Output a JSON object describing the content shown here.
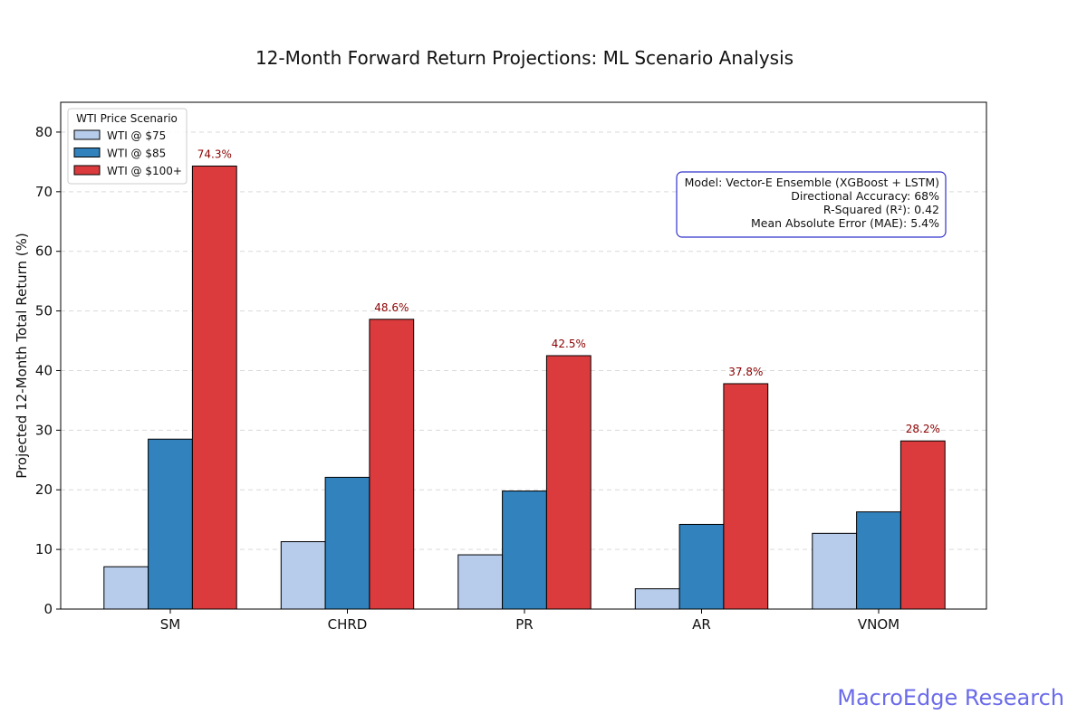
{
  "chart_data": {
    "type": "bar",
    "title": "12-Month Forward Return Projections: ML Scenario Analysis",
    "xlabel": "",
    "ylabel": "Projected 12-Month Total Return (%)",
    "ylim": [
      0,
      85
    ],
    "yticks": [
      "0",
      "10",
      "20",
      "30",
      "40",
      "50",
      "60",
      "70",
      "80"
    ],
    "grid": true,
    "categories": [
      "SM",
      "CHRD",
      "PR",
      "AR",
      "VNOM"
    ],
    "series": [
      {
        "name": "WTI @ $75",
        "color": "#b7ccea",
        "values": [
          7.1,
          11.3,
          9.1,
          3.4,
          12.7
        ]
      },
      {
        "name": "WTI @ $85",
        "color": "#3182bd",
        "values": [
          28.5,
          22.1,
          19.8,
          14.2,
          16.3
        ]
      },
      {
        "name": "WTI @ $100+",
        "color": "#dc3b3e",
        "values": [
          74.3,
          48.6,
          42.5,
          37.8,
          28.2
        ]
      }
    ],
    "data_labels": [
      "74.3%",
      "48.6%",
      "42.5%",
      "37.8%",
      "28.2%"
    ],
    "legend": {
      "title": "WTI Price Scenario",
      "placement": "top-left"
    },
    "annotation": {
      "border_color": "#3333cc",
      "lines": [
        "Model: Vector-E Ensemble (XGBoost + LSTM)",
        "Directional Accuracy: 68%",
        "R-Squared (R²): 0.42",
        "Mean Absolute Error (MAE): 5.4%"
      ]
    }
  },
  "watermark": "MacroEdge Research"
}
